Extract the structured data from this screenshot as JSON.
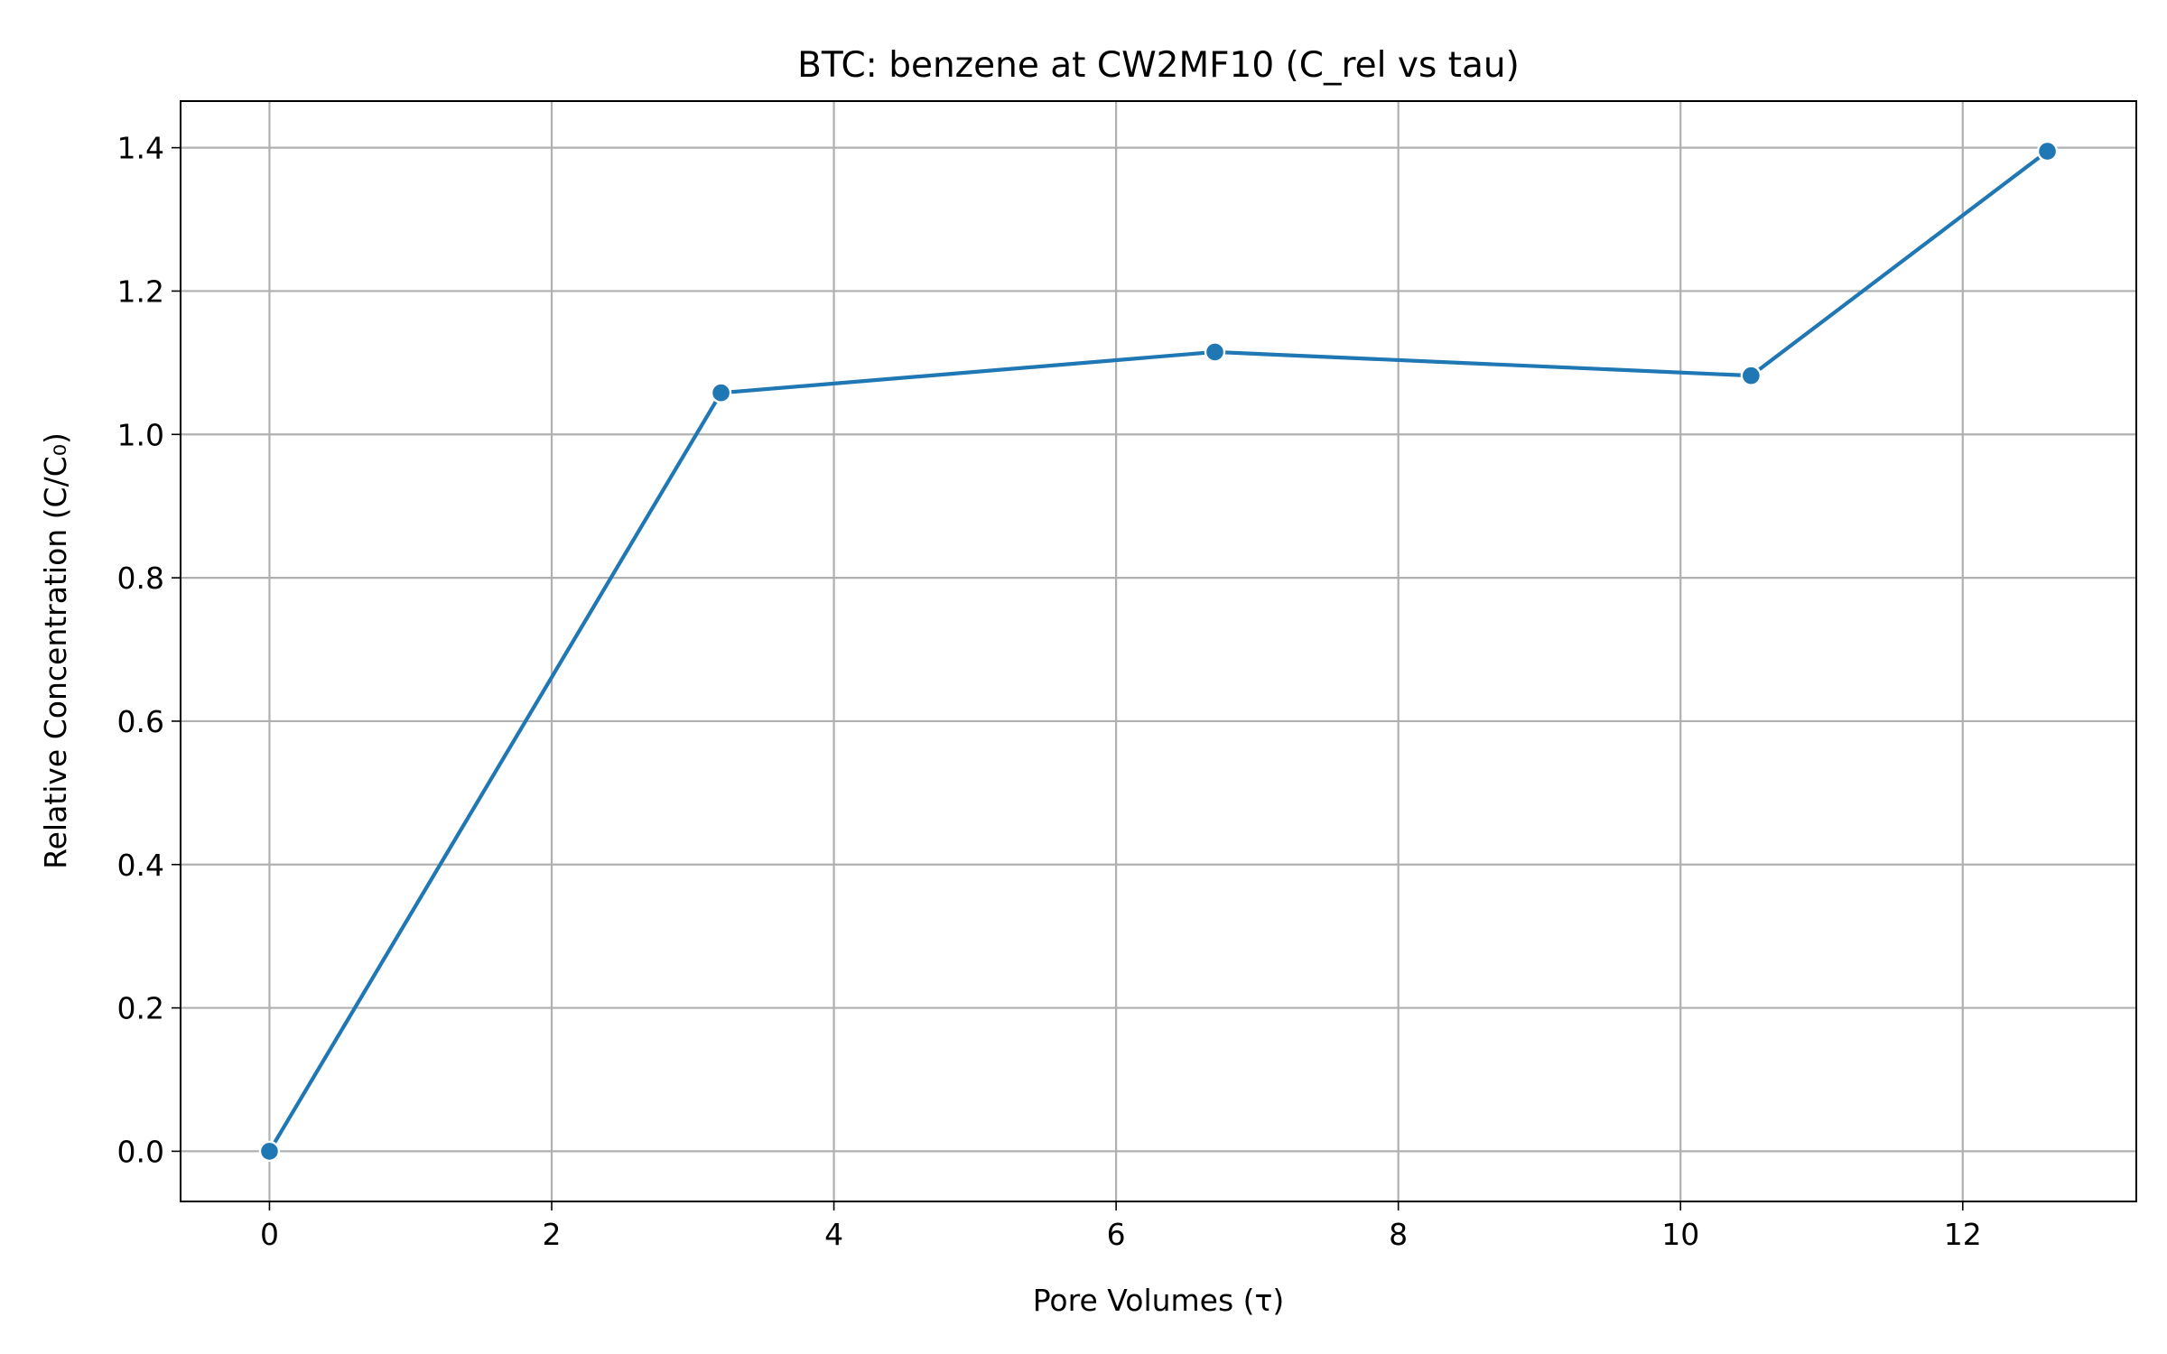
{
  "chart_data": {
    "type": "line",
    "title": "BTC: benzene at CW2MF10 (C_rel vs tau)",
    "xlabel": "Pore Volumes (τ)",
    "ylabel": "Relative Concentration (C/C₀)",
    "xlim": [
      -0.63,
      13.23
    ],
    "ylim": [
      -0.07,
      1.465
    ],
    "xticks": [
      0,
      2,
      4,
      6,
      8,
      10,
      12
    ],
    "yticks": [
      0.0,
      0.2,
      0.4,
      0.6,
      0.8,
      1.0,
      1.2,
      1.4
    ],
    "xtick_labels": [
      "0",
      "2",
      "4",
      "6",
      "8",
      "10",
      "12"
    ],
    "ytick_labels": [
      "0.0",
      "0.2",
      "0.4",
      "0.6",
      "0.8",
      "1.0",
      "1.2",
      "1.4"
    ],
    "grid": true,
    "series": [
      {
        "color": "#1f77b4",
        "marker": "circle",
        "x": [
          0.0,
          3.2,
          6.7,
          10.5,
          12.6
        ],
        "y": [
          0.0,
          1.058,
          1.115,
          1.082,
          1.395
        ]
      }
    ]
  }
}
